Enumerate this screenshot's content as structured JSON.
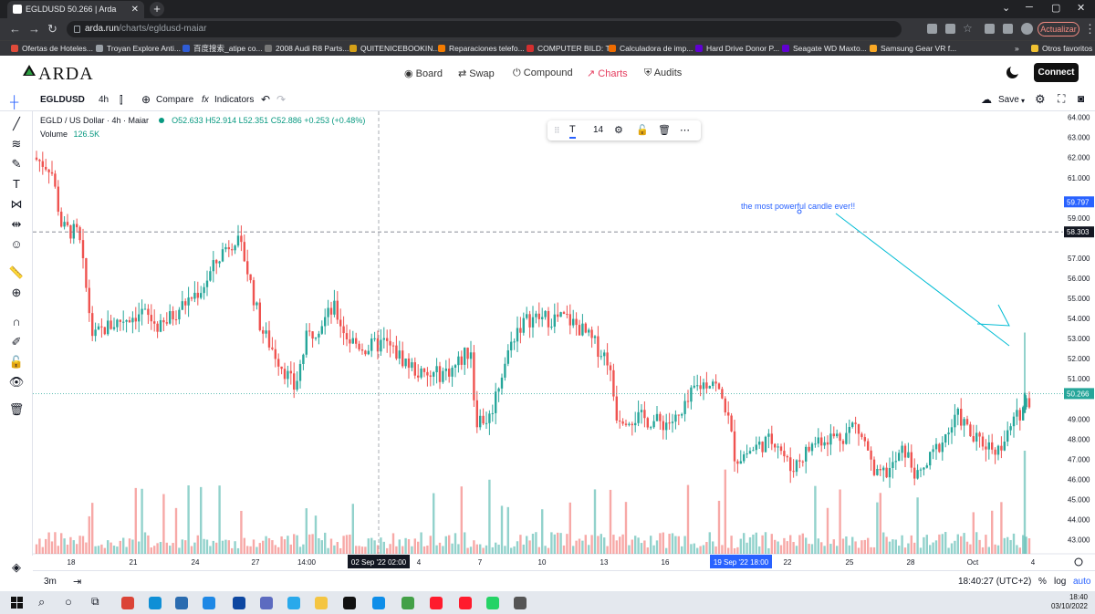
{
  "browser": {
    "tab_title": "EGLDUSD 50.266 | Arda",
    "url_domain": "arda.run",
    "url_path": "/charts/egldusd-maiar",
    "update_label": "Actualizar",
    "bookmarks": [
      {
        "label": "Ofertas de Hoteles...",
        "color": "#e04b3a"
      },
      {
        "label": "Troyan Explore Anti...",
        "color": "#9aa0a6"
      },
      {
        "label": "百度搜索_atipe co...",
        "color": "#2f5cd6"
      },
      {
        "label": "2008 Audi R8 Parts...",
        "color": "#777777"
      },
      {
        "label": "QUITENICEBOOKIN...",
        "color": "#d4a017"
      },
      {
        "label": "Reparaciones telefo...",
        "color": "#f57c00"
      },
      {
        "label": "COMPUTER BILD: T...",
        "color": "#d32f2f"
      },
      {
        "label": "Calculadora de imp...",
        "color": "#ef6c00"
      },
      {
        "label": "Hard Drive Donor P...",
        "color": "#6001d2"
      },
      {
        "label": "Seagate WD Maxto...",
        "color": "#6001d2"
      },
      {
        "label": "Samsung Gear VR f...",
        "color": "#f9a825"
      }
    ],
    "other_bookmarks": "Otros favoritos",
    "more_bookmarks": "»"
  },
  "app": {
    "logo": "ARDA",
    "nav": [
      {
        "label": "Board",
        "icon": "eye-icon",
        "glyph": "◉",
        "active": false
      },
      {
        "label": "Swap",
        "icon": "swap-icon",
        "glyph": "⇄",
        "active": false
      },
      {
        "label": "Compound",
        "icon": "power-icon",
        "glyph": "⏻",
        "active": false
      },
      {
        "label": "Charts",
        "icon": "chart-up-icon",
        "glyph": "↗",
        "active": true
      },
      {
        "label": "Audits",
        "icon": "shield-icon",
        "glyph": "⛨",
        "active": false
      }
    ],
    "connect_label": "Connect",
    "accent": "#e53b5d"
  },
  "toolbar": {
    "symbol": "EGLDUSD",
    "interval": "4h",
    "compare_label": "Compare",
    "indicators_label": "Indicators",
    "save_label": "Save"
  },
  "legend": {
    "pair": "EGLD / US Dollar · 4h · Maiar",
    "open": "O52.633",
    "high": "H52.914",
    "low": "L52.351",
    "close": "C52.886",
    "change": "+0.253 (+0.48%)",
    "volume_label": "Volume",
    "volume_value": "126.5K"
  },
  "drawing_toolbar": {
    "font_size": "14"
  },
  "annotation": "the most powerful candle ever!!",
  "bottom_bar": {
    "range": "3m",
    "time": "18:40:27 (UTC+2)",
    "percent": "%",
    "log": "log",
    "auto": "auto"
  },
  "taskbar": {
    "time": "18:40",
    "date": "03/10/2022"
  },
  "chart_data": {
    "type": "candlestick",
    "ylim": [
      42.3,
      64.3
    ],
    "y_ticks": [
      "64.000",
      "63.000",
      "62.000",
      "61.000",
      "59.000",
      "57.000",
      "56.000",
      "55.000",
      "54.000",
      "53.000",
      "52.000",
      "51.000",
      "49.000",
      "48.000",
      "47.000",
      "46.000",
      "45.000",
      "44.000",
      "43.000"
    ],
    "x_ticks": [
      "18",
      "21",
      "24",
      "27",
      "14:00",
      "4",
      "7",
      "10",
      "13",
      "16",
      "22",
      "25",
      "28",
      "Oct",
      "4"
    ],
    "price_labels": [
      {
        "value": "59.797",
        "color": "#2962ff"
      },
      {
        "value": "58.303",
        "color": "#131722"
      },
      {
        "value": "50.266",
        "color": "#26a69a"
      }
    ],
    "crosshair_label": "02 Sep '22  02:00",
    "selected_label": "19 Sep '22  18:00",
    "up_color": "#26a69a",
    "down_color": "#ef5350"
  }
}
